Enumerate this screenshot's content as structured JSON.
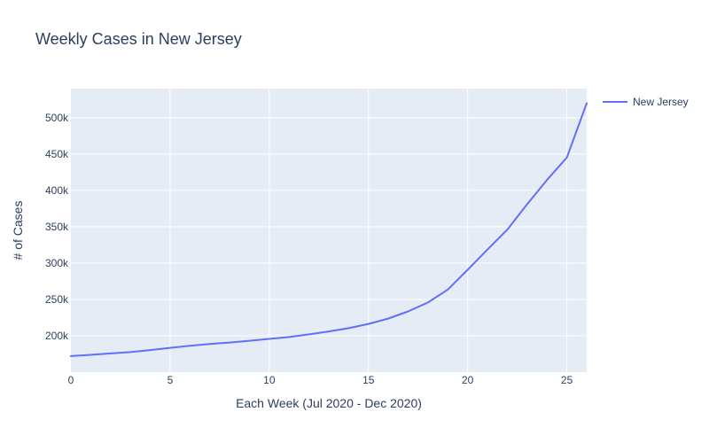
{
  "chart_data": {
    "type": "line",
    "title": "Weekly Cases in New Jersey",
    "xlabel": "Each Week (Jul 2020 - Dec 2020)",
    "ylabel": "# of Cases",
    "xlim": [
      0,
      26
    ],
    "ylim": [
      150000,
      540000
    ],
    "x_ticks": [
      0,
      5,
      10,
      15,
      20,
      25
    ],
    "x_tick_labels": [
      "0",
      "5",
      "10",
      "15",
      "20",
      "25"
    ],
    "y_ticks": [
      200000,
      250000,
      300000,
      350000,
      400000,
      450000,
      500000
    ],
    "y_tick_labels": [
      "200k",
      "250k",
      "300k",
      "350k",
      "400k",
      "450k",
      "500k"
    ],
    "grid": true,
    "legend_position": "top-right",
    "series": [
      {
        "name": "New Jersey",
        "color": "#636efa",
        "x": [
          0,
          1,
          2,
          3,
          4,
          5,
          6,
          7,
          8,
          9,
          10,
          11,
          12,
          13,
          14,
          15,
          16,
          17,
          18,
          19,
          20,
          21,
          22,
          23,
          24,
          25,
          26
        ],
        "y": [
          172000,
          173800,
          175700,
          177600,
          180300,
          183400,
          186200,
          188800,
          190700,
          193200,
          195700,
          198300,
          201900,
          206000,
          210500,
          216300,
          223700,
          233500,
          245800,
          263600,
          290800,
          318700,
          346100,
          380900,
          414300,
          445200,
          519900
        ]
      }
    ]
  }
}
